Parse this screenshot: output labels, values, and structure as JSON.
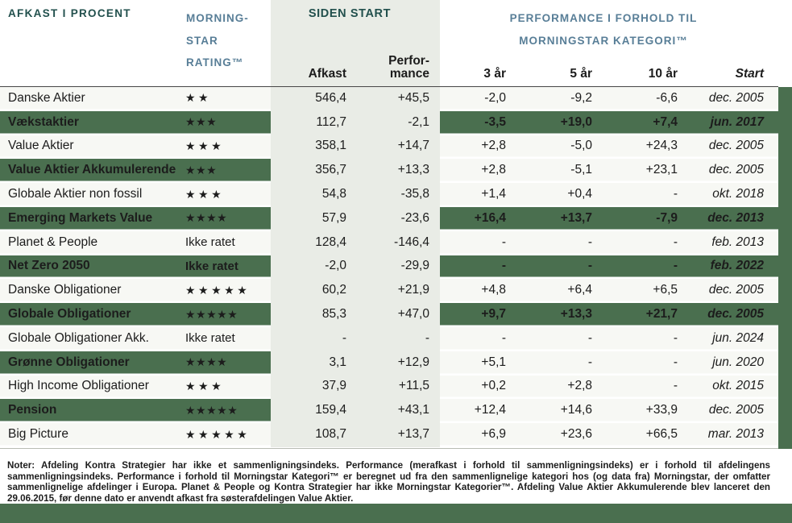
{
  "header": {
    "left_title": "AFKAST I PROCENT",
    "rating_title": [
      "MORNING-",
      "STAR",
      "RATING™"
    ],
    "siden_start_title": "SIDEN START",
    "performance_title": [
      "PERFORMANCE I FORHOLD TIL",
      "MORNINGSTAR KATEGORI™"
    ],
    "col_afkast": "Afkast",
    "col_performance": [
      "Perfor-",
      "mance"
    ],
    "col_3yr": "3 år",
    "col_5yr": "5 år",
    "col_10yr": "10 år",
    "col_start": "Start"
  },
  "rows": [
    {
      "name": "Danske Aktier",
      "rating": "★★",
      "afkast": "546,4",
      "performance": "+45,5",
      "yr3": "-2,0",
      "yr5": "-9,2",
      "yr10": "-6,6",
      "start": "dec. 2005",
      "green": false,
      "right_green": false
    },
    {
      "name": "Vækstaktier",
      "rating": "★★★",
      "afkast": "112,7",
      "performance": "-2,1",
      "yr3": "-3,5",
      "yr5": "+19,0",
      "yr10": "+7,4",
      "start": "jun. 2017",
      "green": true,
      "right_green": true
    },
    {
      "name": "Value Aktier",
      "rating": "★★★",
      "afkast": "358,1",
      "performance": "+14,7",
      "yr3": "+2,8",
      "yr5": "-5,0",
      "yr10": "+24,3",
      "start": "dec. 2005",
      "green": false,
      "right_green": false
    },
    {
      "name": "Value Aktier Akkumulerende",
      "rating": "★★★",
      "afkast": "356,7",
      "performance": "+13,3",
      "yr3": "+2,8",
      "yr5": "-5,1",
      "yr10": "+23,1",
      "start": "dec. 2005",
      "green": true,
      "right_green": false
    },
    {
      "name": "Globale Aktier non fossil",
      "rating": "★★★",
      "afkast": "54,8",
      "performance": "-35,8",
      "yr3": "+1,4",
      "yr5": "+0,4",
      "yr10": "-",
      "start": "okt. 2018",
      "green": false,
      "right_green": false
    },
    {
      "name": "Emerging Markets Value",
      "rating": "★★★★",
      "afkast": "57,9",
      "performance": "-23,6",
      "yr3": "+16,4",
      "yr5": "+13,7",
      "yr10": "-7,9",
      "start": "dec. 2013",
      "green": true,
      "right_green": true
    },
    {
      "name": "Planet & People",
      "rating": "Ikke ratet",
      "afkast": "128,4",
      "performance": "-146,4",
      "yr3": "-",
      "yr5": "-",
      "yr10": "-",
      "start": "feb. 2013",
      "green": false,
      "right_green": false
    },
    {
      "name": "Net Zero 2050",
      "rating": "Ikke ratet",
      "afkast": "-2,0",
      "performance": "-29,9",
      "yr3": "-",
      "yr5": "-",
      "yr10": "-",
      "start": "feb. 2022",
      "green": true,
      "right_green": true
    },
    {
      "name": "Danske Obligationer",
      "rating": "★★★★★",
      "afkast": "60,2",
      "performance": "+21,9",
      "yr3": "+4,8",
      "yr5": "+6,4",
      "yr10": "+6,5",
      "start": "dec. 2005",
      "green": false,
      "right_green": false
    },
    {
      "name": "Globale Obligationer",
      "rating": "★★★★★",
      "afkast": "85,3",
      "performance": "+47,0",
      "yr3": "+9,7",
      "yr5": "+13,3",
      "yr10": "+21,7",
      "start": "dec. 2005",
      "green": true,
      "right_green": true
    },
    {
      "name": "Globale Obligationer Akk.",
      "rating": "Ikke ratet",
      "afkast": "-",
      "performance": "-",
      "yr3": "-",
      "yr5": "-",
      "yr10": "-",
      "start": "jun. 2024",
      "green": false,
      "right_green": false
    },
    {
      "name": "Grønne Obligationer",
      "rating": "★★★★",
      "afkast": "3,1",
      "performance": "+12,9",
      "yr3": "+5,1",
      "yr5": "-",
      "yr10": "-",
      "start": "jun. 2020",
      "green": true,
      "right_green": false
    },
    {
      "name": "High Income Obligationer",
      "rating": "★★★",
      "afkast": "37,9",
      "performance": "+11,5",
      "yr3": "+0,2",
      "yr5": "+2,8",
      "yr10": "-",
      "start": "okt. 2015",
      "green": false,
      "right_green": false
    },
    {
      "name": "Pension",
      "rating": "★★★★★",
      "afkast": "159,4",
      "performance": "+43,1",
      "yr3": "+12,4",
      "yr5": "+14,6",
      "yr10": "+33,9",
      "start": "dec. 2005",
      "green": true,
      "right_green": false
    },
    {
      "name": "Big Picture",
      "rating": "★★★★★",
      "afkast": "108,7",
      "performance": "+13,7",
      "yr3": "+6,9",
      "yr5": "+23,6",
      "yr10": "+66,5",
      "start": "mar. 2013",
      "green": false,
      "right_green": false
    }
  ],
  "notes": "Noter: Afdeling Kontra Strategier har ikke et sammenligningsindeks. Performance (merafkast i forhold til sammenligningsindeks) er i forhold til afdelingens sammenligningsindeks. Performance i forhold til Morningstar Kategori™ er beregnet ud fra den sammenlignelige kategori hos (og data fra) Morningstar, der omfatter sammenlignelige afdelinger i Europa. Planet & People og Kontra Strategier har ikke Morningstar Kategorier™. Afdeling Value Aktier Akkumulerende blev lanceret den 29.06.2015, før denne dato er anvendt afkast fra søsterafdelingen Value Aktier.",
  "colors": {
    "green": "#4a6f4f",
    "band-grey": "#e9ece6",
    "row-pale": "#f7f8f4",
    "teal-dark": "#22504d",
    "steel-blue": "#587e97",
    "text": "#1c1c1c",
    "rule": "#474747"
  }
}
